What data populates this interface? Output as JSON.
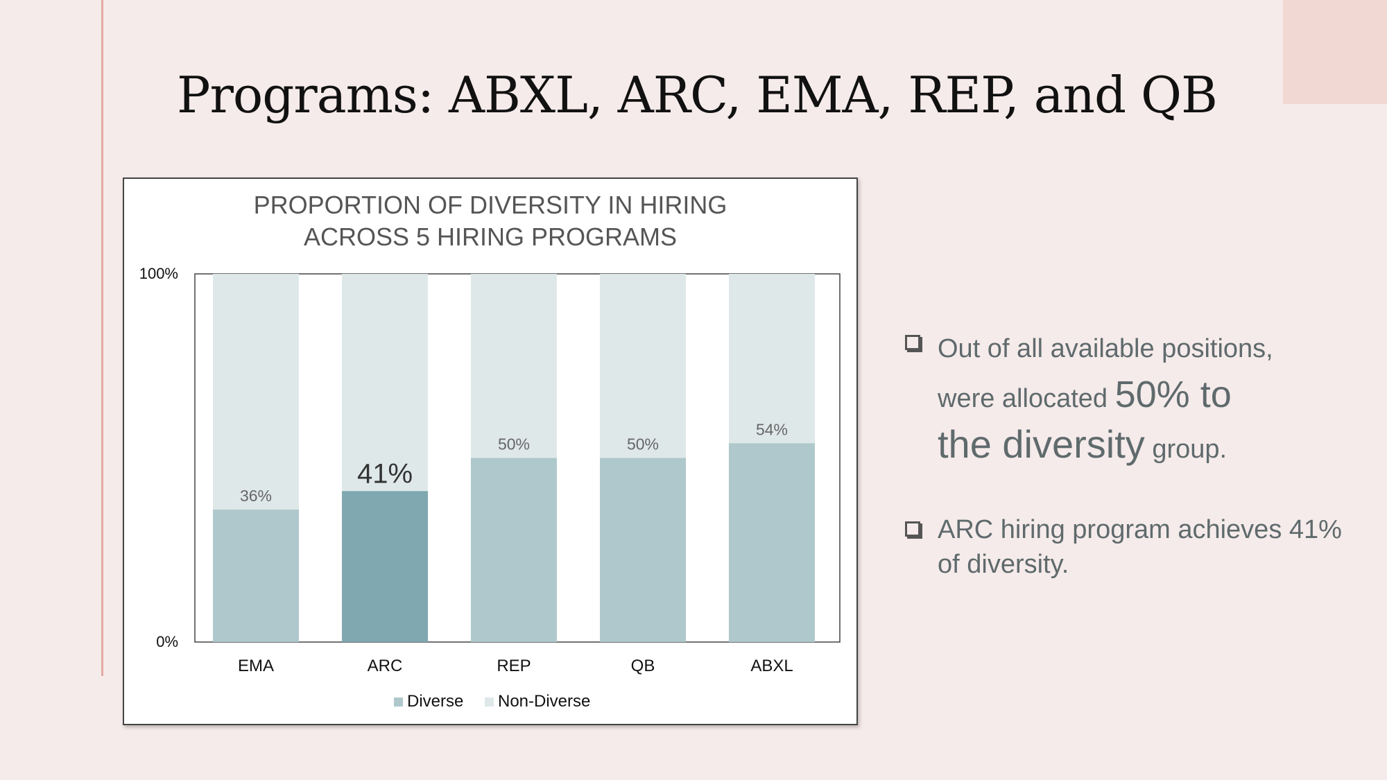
{
  "slide": {
    "title": "Programs: ABXL, ARC, EMA, REP, and QB"
  },
  "bullets": {
    "b1_part1": "Out of all available positions,",
    "b1_part2": "were allocated",
    "b1_big": "50% to",
    "b1_mid": "the diversity",
    "b1_end": "group.",
    "b2_text": "ARC hiring program achieves 41% of diversity."
  },
  "colors": {
    "background": "#f5ebea",
    "diverse": "#afc8cc",
    "diverse_highlight": "#7fa8b0",
    "non_diverse": "#dfe8e9",
    "accent_line": "#e3a9a3"
  },
  "chart_data": {
    "type": "bar",
    "stacked": true,
    "percent_stacked": true,
    "title_lines": [
      "PROPORTION OF DIVERSITY IN HIRING",
      "ACROSS 5 HIRING PROGRAMS"
    ],
    "categories": [
      "EMA",
      "ARC",
      "REP",
      "QB",
      "ABXL"
    ],
    "series": [
      {
        "name": "Diverse",
        "values": [
          36,
          41,
          50,
          50,
          54
        ]
      },
      {
        "name": "Non-Diverse",
        "values": [
          64,
          59,
          50,
          50,
          46
        ]
      }
    ],
    "data_labels": [
      "36%",
      "41%",
      "50%",
      "50%",
      "54%"
    ],
    "highlight_category": "ARC",
    "y_ticks": [
      "0%",
      "100%"
    ],
    "ylim": [
      0,
      100
    ],
    "legend_position": "bottom",
    "grid": false
  }
}
